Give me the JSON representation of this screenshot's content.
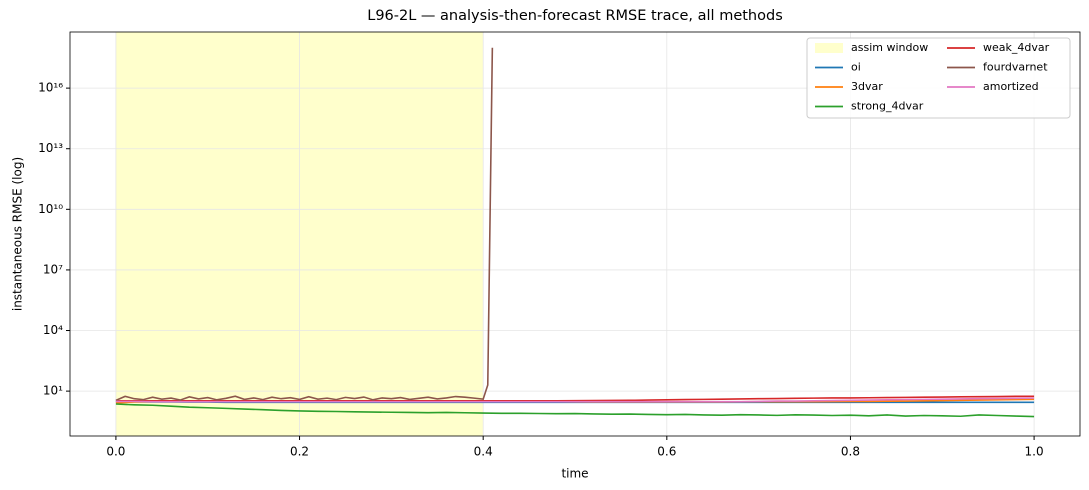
{
  "chart_data": {
    "type": "line",
    "title": "L96-2L — analysis-then-forecast RMSE trace, all methods",
    "xlabel": "time",
    "ylabel": "instantaneous RMSE (log)",
    "xlim": [
      -0.05,
      1.05
    ],
    "xticks": [
      {
        "value": 0,
        "label": "0.0"
      },
      0.2,
      0.4,
      0.6,
      0.8,
      {
        "value": 1,
        "label": "1.0"
      }
    ],
    "ylim": [
      0.06,
      6e+18
    ],
    "yscale": "log",
    "yticks": [
      {
        "value": 10,
        "label": "10¹"
      },
      {
        "value": 10000,
        "label": "10⁴"
      },
      {
        "value": 10000000,
        "label": "10⁷"
      },
      {
        "value": 10000000000,
        "label": "10¹⁰"
      },
      {
        "value": 10000000000000,
        "label": "10¹³"
      },
      {
        "value": 10000000000000000,
        "label": "10¹⁶"
      }
    ],
    "grid": true,
    "legend": "upper right",
    "span": {
      "label": "assim window",
      "x": [
        0,
        0.4
      ],
      "color": "#ffffcc"
    },
    "x": [
      0,
      0.02,
      0.04,
      0.06,
      0.08,
      0.1,
      0.12,
      0.14,
      0.16,
      0.18,
      0.2,
      0.22,
      0.24,
      0.26,
      0.28,
      0.3,
      0.32,
      0.34,
      0.36,
      0.38,
      0.4,
      0.42,
      0.44,
      0.46,
      0.48,
      0.5,
      0.52,
      0.54,
      0.56,
      0.58,
      0.6,
      0.62,
      0.64,
      0.66,
      0.68,
      0.7,
      0.72,
      0.74,
      0.76,
      0.78,
      0.8,
      0.82,
      0.84,
      0.86,
      0.88,
      0.9,
      0.92,
      0.94,
      0.96,
      0.98,
      1.0
    ],
    "series": [
      {
        "name": "oi",
        "color": "#1f77b4",
        "values": [
          3.0,
          2.95,
          2.9,
          2.9,
          2.85,
          2.85,
          2.8,
          2.8,
          2.8,
          2.8,
          2.8,
          2.8,
          2.8,
          2.8,
          2.8,
          2.8,
          2.8,
          2.8,
          2.8,
          2.8,
          2.8,
          2.8,
          2.8,
          2.8,
          2.8,
          2.8,
          2.8,
          2.8,
          2.8,
          2.8,
          2.8,
          2.8,
          2.8,
          2.8,
          2.8,
          2.8,
          2.8,
          2.8,
          2.8,
          2.8,
          2.8,
          2.8,
          2.8,
          2.8,
          2.8,
          2.8,
          2.8,
          2.8,
          2.8,
          2.8,
          2.8
        ]
      },
      {
        "name": "3dvar",
        "color": "#ff7f0e",
        "values": [
          2.6,
          2.9,
          3.0,
          3.0,
          3.0,
          3.0,
          3.0,
          3.0,
          3.0,
          3.0,
          3.0,
          3.0,
          3.0,
          3.0,
          3.0,
          3.0,
          3.0,
          3.0,
          3.0,
          3.0,
          3.0,
          3.0,
          3.0,
          3.0,
          3.0,
          2.95,
          2.9,
          2.9,
          2.9,
          2.9,
          2.9,
          2.9,
          2.9,
          2.9,
          2.95,
          3.0,
          3.0,
          3.0,
          3.0,
          3.05,
          3.1,
          3.1,
          3.15,
          3.2,
          3.3,
          3.4,
          3.5,
          3.6,
          3.7,
          3.8,
          3.9
        ]
      },
      {
        "name": "strong_4dvar",
        "color": "#2ca02c",
        "values": [
          2.3,
          2.1,
          2.0,
          1.8,
          1.6,
          1.5,
          1.4,
          1.3,
          1.2,
          1.1,
          1.05,
          1.0,
          0.98,
          0.95,
          0.92,
          0.9,
          0.88,
          0.86,
          0.88,
          0.85,
          0.82,
          0.8,
          0.8,
          0.78,
          0.76,
          0.77,
          0.74,
          0.72,
          0.73,
          0.7,
          0.68,
          0.7,
          0.66,
          0.64,
          0.68,
          0.66,
          0.63,
          0.67,
          0.65,
          0.62,
          0.64,
          0.6,
          0.66,
          0.58,
          0.62,
          0.6,
          0.57,
          0.66,
          0.62,
          0.58,
          0.55
        ]
      },
      {
        "name": "weak_4dvar",
        "color": "#d62728",
        "values": [
          3.3,
          3.3,
          3.3,
          3.3,
          3.3,
          3.3,
          3.3,
          3.3,
          3.3,
          3.3,
          3.3,
          3.3,
          3.3,
          3.3,
          3.3,
          3.3,
          3.3,
          3.3,
          3.3,
          3.3,
          3.3,
          3.3,
          3.3,
          3.3,
          3.3,
          3.35,
          3.4,
          3.45,
          3.5,
          3.6,
          3.7,
          3.8,
          3.9,
          4.0,
          4.1,
          4.2,
          4.3,
          4.4,
          4.5,
          4.6,
          4.6,
          4.7,
          4.8,
          4.9,
          5.0,
          5.1,
          5.2,
          5.3,
          5.4,
          5.5,
          5.5
        ]
      },
      {
        "name": "fourdvarnet",
        "color": "#8c564b",
        "x": [
          0,
          0.01,
          0.02,
          0.03,
          0.04,
          0.05,
          0.06,
          0.07,
          0.08,
          0.09,
          0.1,
          0.11,
          0.12,
          0.13,
          0.14,
          0.15,
          0.16,
          0.17,
          0.18,
          0.19,
          0.2,
          0.21,
          0.22,
          0.23,
          0.24,
          0.25,
          0.26,
          0.27,
          0.28,
          0.29,
          0.3,
          0.31,
          0.32,
          0.33,
          0.34,
          0.35,
          0.36,
          0.37,
          0.38,
          0.39,
          0.4,
          0.405,
          0.41
        ],
        "values": [
          3.5,
          5.5,
          4.2,
          3.8,
          5.0,
          4.0,
          4.5,
          3.6,
          5.2,
          4.1,
          4.8,
          3.7,
          4.4,
          5.6,
          3.9,
          4.6,
          3.8,
          5.0,
          4.2,
          4.7,
          3.9,
          5.3,
          4.0,
          4.5,
          3.8,
          4.9,
          4.3,
          5.1,
          3.7,
          4.6,
          4.2,
          4.8,
          3.9,
          4.4,
          5.0,
          4.1,
          4.6,
          5.4,
          5.0,
          4.5,
          4.0,
          20,
          1e+18
        ]
      },
      {
        "name": "amortized",
        "color": "#e377c2",
        "values": [
          3.1,
          3.1,
          3.0,
          3.0,
          3.0,
          3.0,
          3.0,
          3.0,
          3.0,
          3.0,
          3.0,
          3.0,
          3.0,
          3.0,
          3.0,
          3.0,
          3.0,
          3.0,
          3.0,
          3.0,
          3.0,
          3.0,
          3.0,
          3.0,
          3.0,
          3.0,
          3.0,
          3.0,
          3.0,
          3.0,
          3.0,
          3.0,
          3.0,
          3.0,
          3.0,
          3.1,
          3.2,
          3.2,
          3.3,
          3.4,
          3.5,
          3.6,
          3.7,
          3.8,
          3.9,
          4.0,
          4.1,
          4.2,
          4.3,
          4.4,
          4.5
        ]
      }
    ]
  }
}
